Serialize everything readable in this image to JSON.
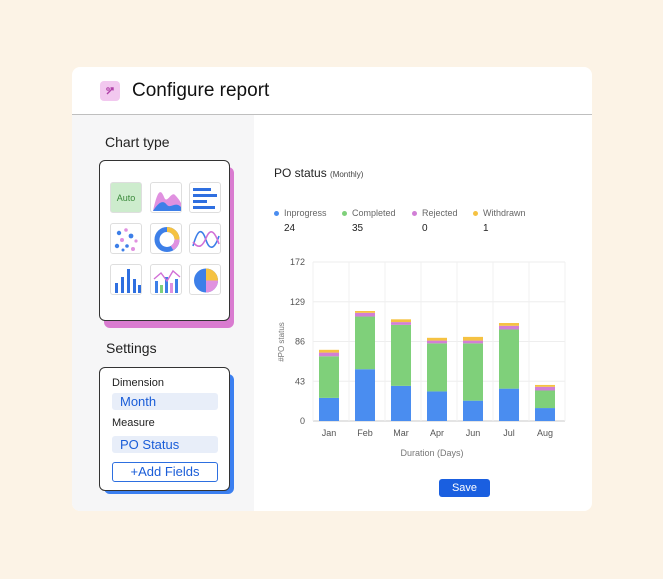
{
  "header": {
    "title": "Configure report"
  },
  "left": {
    "chart_type_title": "Chart type",
    "auto_label": "Auto",
    "settings_title": "Settings",
    "dimension_label": "Dimension",
    "dimension_value": "Month",
    "measure_label": "Measure",
    "measure_value": "PO Status",
    "add_fields_label": "+Add Fields"
  },
  "report": {
    "title": "PO status",
    "subtitle": "(Monthly)",
    "save_label": "Save",
    "legend": [
      {
        "label": "Inprogress",
        "count": "24",
        "color": "#4a8df0"
      },
      {
        "label": "Completed",
        "count": "35",
        "color": "#7fd07a"
      },
      {
        "label": "Rejected",
        "count": "0",
        "color": "#d17fd6"
      },
      {
        "label": "Withdrawn",
        "count": "1",
        "color": "#f5c242"
      }
    ]
  },
  "chart_data": {
    "type": "bar",
    "stacked": true,
    "categories": [
      "Jan",
      "Feb",
      "Mar",
      "Apr",
      "Jun",
      "Jul",
      "Aug"
    ],
    "series": [
      {
        "name": "Inprogress",
        "values": [
          25,
          56,
          38,
          32,
          22,
          35,
          14
        ]
      },
      {
        "name": "Completed",
        "values": [
          45,
          57,
          66,
          52,
          62,
          64,
          19
        ]
      },
      {
        "name": "Rejected",
        "values": [
          4,
          4,
          3,
          3,
          3,
          4,
          4
        ]
      },
      {
        "name": "Withdrawn",
        "values": [
          3,
          2,
          3,
          3,
          4,
          3,
          2
        ]
      }
    ],
    "xlabel": "Duration (Days)",
    "ylabel": "#PO status",
    "ylim": [
      0,
      172
    ],
    "yticks": [
      0,
      43,
      86,
      129,
      172
    ],
    "colors": [
      "#4a8df0",
      "#7fd07a",
      "#d17fd6",
      "#f5c242"
    ]
  }
}
